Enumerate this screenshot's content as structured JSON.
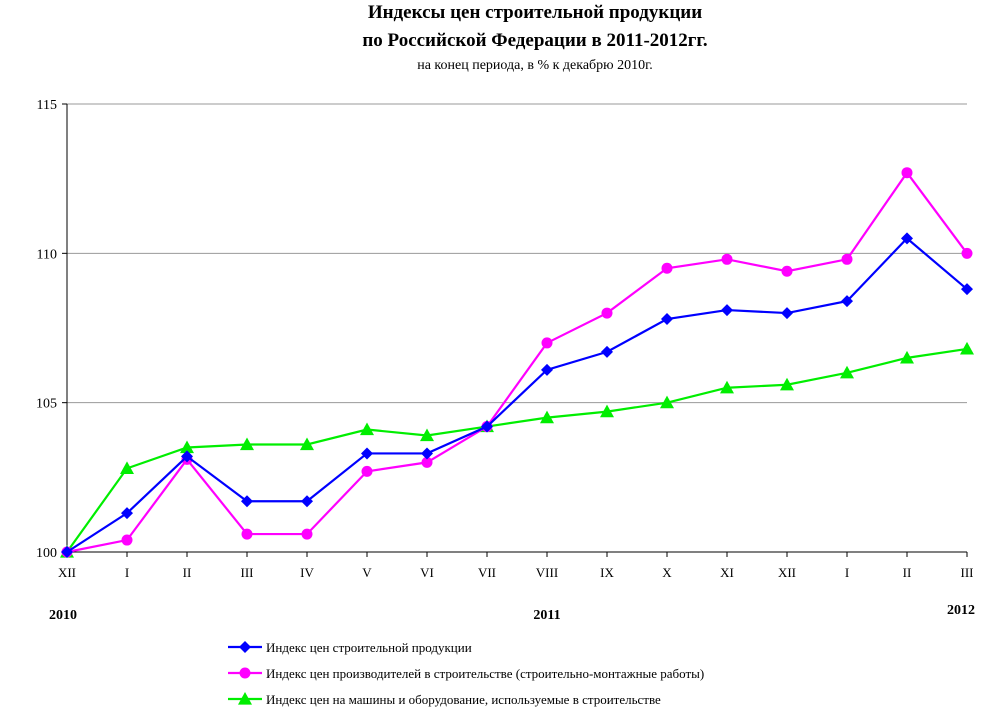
{
  "chart_data": {
    "type": "line",
    "title": "Индексы цен строительной продукции",
    "title2": "по Российской Федерации в 2011-2012гг.",
    "subtitle": "на конец периода, в % к декабрю 2010г.",
    "xlabel": "",
    "ylabel": "",
    "ylim": [
      100,
      115
    ],
    "yticks": [
      "100",
      "105",
      "110",
      "115"
    ],
    "categories": [
      "XII",
      "I",
      "II",
      "III",
      "IV",
      "V",
      "VI",
      "VII",
      "VIII",
      "IX",
      "X",
      "XI",
      "XII",
      "I",
      "II",
      "III"
    ],
    "years": [
      {
        "label": "2010",
        "at_index": 0
      },
      {
        "label": "2011",
        "at_index": 8
      },
      {
        "label": "2012",
        "at_index": 15
      }
    ],
    "grid": "horizontal",
    "legend_position": "bottom",
    "series": [
      {
        "name": "Индекс цен строительной продукции",
        "color": "#0000ff",
        "marker": "diamond",
        "values": [
          100.0,
          101.3,
          103.2,
          101.7,
          101.7,
          103.3,
          103.3,
          104.2,
          106.1,
          106.7,
          107.8,
          108.1,
          108.0,
          108.4,
          110.5,
          108.8
        ]
      },
      {
        "name": "Индекс цен производителей в строительстве (строительно-монтажные работы)",
        "color": "#ff00ff",
        "marker": "circle",
        "values": [
          100.0,
          100.4,
          103.1,
          100.6,
          100.6,
          102.7,
          103.0,
          104.2,
          107.0,
          108.0,
          109.5,
          109.8,
          109.4,
          109.8,
          112.7,
          110.0
        ]
      },
      {
        "name": "Индекс цен на машины  и оборудование, используемые в строительстве",
        "color": "#00ee00",
        "marker": "triangle",
        "values": [
          100.0,
          102.8,
          103.5,
          103.6,
          103.6,
          104.1,
          103.9,
          104.2,
          104.5,
          104.7,
          105.0,
          105.5,
          105.6,
          106.0,
          106.5,
          106.8
        ]
      }
    ]
  }
}
